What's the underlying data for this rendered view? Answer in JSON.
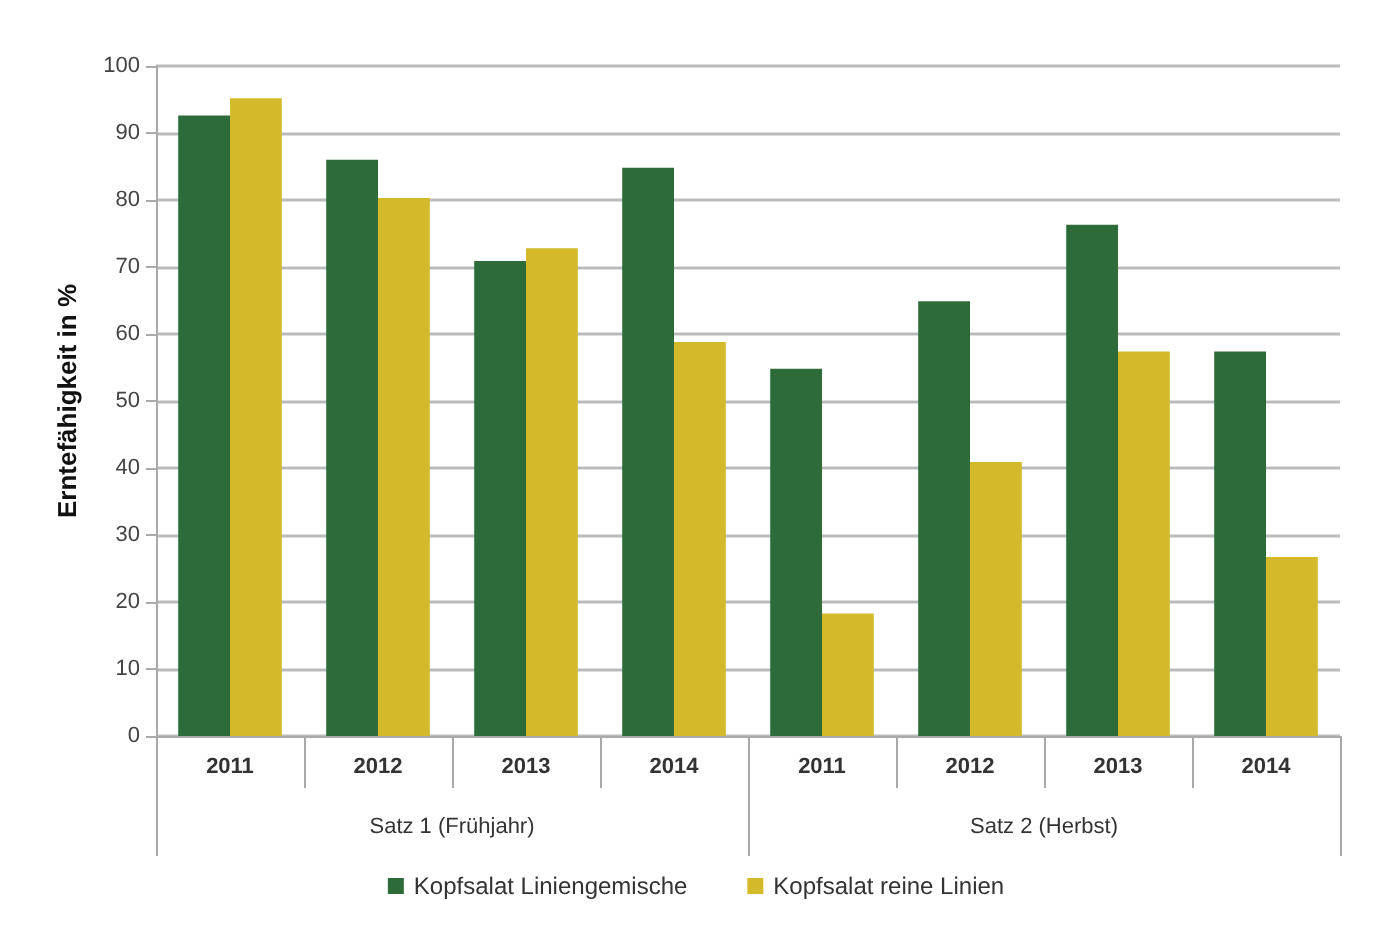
{
  "chart_data": {
    "type": "bar",
    "ylabel": "Erntefähigkeit in %",
    "categories": [
      "2011",
      "2012",
      "2013",
      "2014",
      "2011",
      "2012",
      "2013",
      "2014"
    ],
    "annotations": [
      "Satz 1 (Frühjahr)",
      "Satz 2 (Herbst)"
    ],
    "series": [
      {
        "name": "Kopfsalat Liniengemische",
        "color": "#2e6b3a",
        "values": [
          92.6,
          86.0,
          70.9,
          84.8,
          54.8,
          64.9,
          76.3,
          57.4
        ]
      },
      {
        "name": "Kopfsalat reine Linien",
        "color": "#d4b92a",
        "values": [
          95.2,
          80.3,
          72.8,
          58.8,
          18.3,
          40.9,
          57.4,
          26.7
        ]
      }
    ],
    "ylim": [
      0,
      100
    ],
    "yticks": [
      0,
      10,
      20,
      30,
      40,
      50,
      60,
      70,
      80,
      90,
      100
    ],
    "grid": "y",
    "legend": "bottom"
  }
}
